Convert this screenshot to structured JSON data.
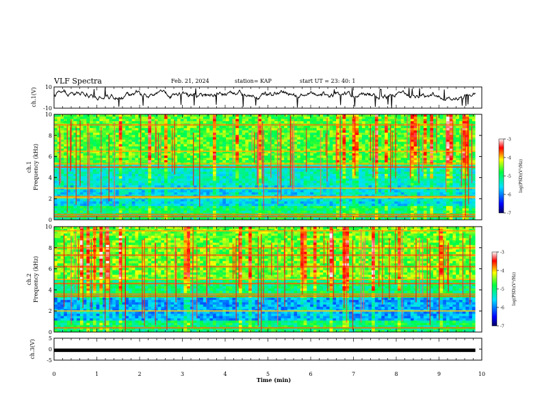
{
  "header": {
    "title": "VLF Spectra",
    "date": "Feb. 21, 2024",
    "station": "station= KAP",
    "start_time": "start  UT  =   23: 40: 1"
  },
  "chart_data": [
    {
      "type": "line",
      "panel": "ch1-waveform",
      "ylabel": "ch.1(V)",
      "ylim": [
        -10,
        10
      ],
      "yticks": [
        "10",
        "-10"
      ],
      "xlim": [
        0,
        10
      ]
    },
    {
      "type": "heatmap",
      "panel": "ch1-spectrogram",
      "ylabel": "ch.1\nFrequency (kHz)",
      "ylim": [
        0,
        10
      ],
      "yticks": [
        "0",
        "2",
        "4",
        "6",
        "8",
        "10"
      ],
      "xlim": [
        0,
        10
      ],
      "data_end_min": 9.85,
      "colorbar": {
        "label": "log(PSD)(V²/Hz)",
        "range": [
          -7,
          -3
        ],
        "ticks": [
          "-3",
          "-4",
          "-5",
          "-6",
          "-7"
        ]
      }
    },
    {
      "type": "heatmap",
      "panel": "ch2-spectrogram",
      "ylabel": "ch.2\nFrequency (kHz)",
      "ylim": [
        0,
        10
      ],
      "yticks": [
        "0",
        "2",
        "4",
        "6",
        "8",
        "10"
      ],
      "xlim": [
        0,
        10
      ],
      "data_end_min": 9.85,
      "colorbar": {
        "label": "log(PSD)(V²/Hz)",
        "range": [
          -7,
          -3
        ],
        "ticks": [
          "-3",
          "-4",
          "-5",
          "-6",
          "-7"
        ]
      }
    },
    {
      "type": "line",
      "panel": "ch3-waveform",
      "ylabel": "ch.3(V)",
      "ylim": [
        -5,
        5
      ],
      "yticks": [
        "5",
        "0",
        "-5"
      ],
      "xlim": [
        0,
        10
      ],
      "level": -0.5
    }
  ],
  "x_axis": {
    "label": "Time  (min)",
    "ticks": [
      "0",
      "1",
      "2",
      "3",
      "4",
      "5",
      "6",
      "7",
      "8",
      "9",
      "10"
    ]
  }
}
